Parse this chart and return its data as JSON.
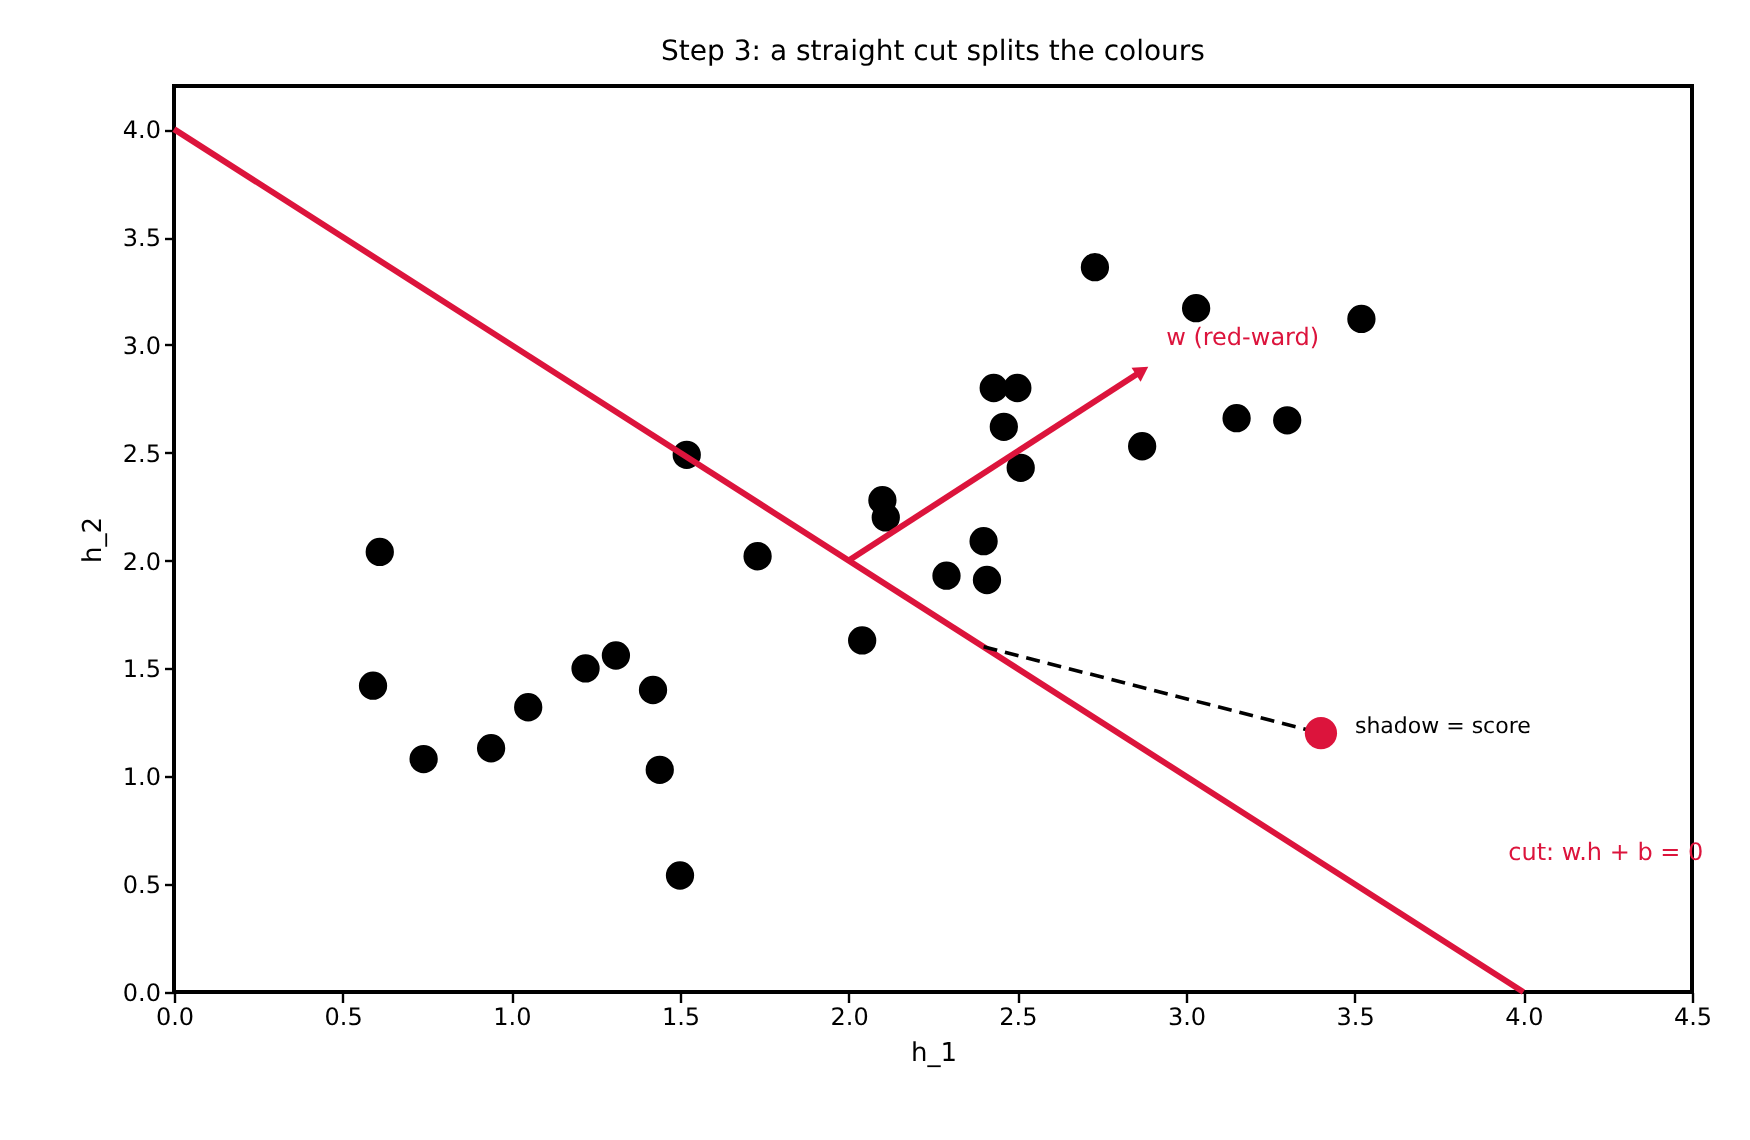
{
  "chart_data": {
    "type": "scatter",
    "title": "Step 3: a straight cut splits the colours",
    "xlabel": "h_1",
    "ylabel": "h_2",
    "xlim": [
      0,
      4.5
    ],
    "ylim": [
      0,
      4.2
    ],
    "xticks": [
      {
        "value": 0,
        "label": "0.0"
      },
      0.5,
      {
        "value": 1,
        "label": "1.0"
      },
      1.5,
      {
        "value": 2,
        "label": "2.0"
      },
      2.5,
      {
        "value": 3,
        "label": "3.0"
      },
      3.5,
      {
        "value": 4,
        "label": "4.0"
      },
      4.5
    ],
    "yticks": [
      {
        "value": 0,
        "label": "0.0"
      },
      0.5,
      {
        "value": 1,
        "label": "1.0"
      },
      1.5,
      {
        "value": 2,
        "label": "2.0"
      },
      2.5,
      {
        "value": 3,
        "label": "3.0"
      },
      3.5,
      {
        "value": 4,
        "label": "4.0"
      }
    ],
    "grid": false,
    "marker": "circle",
    "series": [
      {
        "color": "#000000",
        "x": [
          0.61,
          0.59,
          0.74,
          0.94,
          1.05,
          1.22,
          1.31,
          1.42,
          1.44,
          1.5,
          1.52,
          1.73,
          2.04,
          2.1,
          2.11,
          2.29,
          2.4,
          2.41,
          2.43,
          2.5,
          2.46,
          2.51,
          2.73,
          2.87,
          3.03,
          3.15,
          3.3,
          3.52
        ],
        "values": [
          2.04,
          1.42,
          1.08,
          1.13,
          1.32,
          1.5,
          1.56,
          1.4,
          1.03,
          0.54,
          2.49,
          2.02,
          1.63,
          2.28,
          2.2,
          1.93,
          2.09,
          1.91,
          2.8,
          2.8,
          2.62,
          2.43,
          3.36,
          2.53,
          3.17,
          2.66,
          2.65,
          3.12
        ]
      },
      {
        "type": "line",
        "name": "cut: w.h + b = 0",
        "color": "#dc143c",
        "line_style": "solid",
        "marker": "none",
        "x": [
          0,
          4
        ],
        "values": [
          4,
          0
        ]
      },
      {
        "type": "line",
        "name": "w  (red-ward)",
        "color": "#dc143c",
        "line_style": "solid",
        "marker": "triangle",
        "x": [
          2,
          2.87
        ],
        "values": [
          2,
          2.88
        ]
      },
      {
        "type": "line",
        "color": "#000000",
        "line_style": "dashed",
        "marker": "none",
        "x": [
          2.4,
          3.4
        ],
        "values": [
          1.6,
          1.2
        ]
      },
      {
        "type": "scatter",
        "name": "shadow = score",
        "color": "#dc143c",
        "x": [
          3.4
        ],
        "values": [
          1.2
        ]
      }
    ]
  }
}
